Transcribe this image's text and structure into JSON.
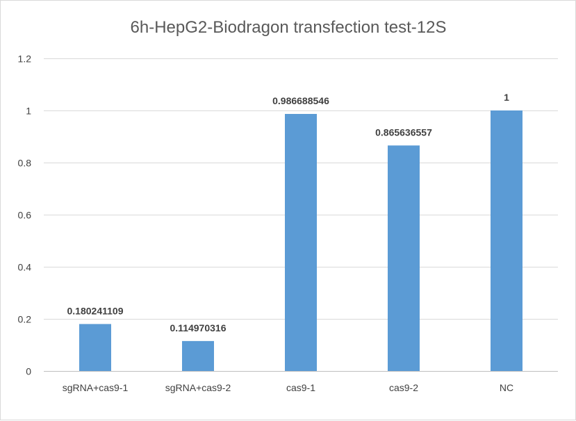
{
  "chart_data": {
    "type": "bar",
    "title": "6h-HepG2-Biodragon transfection test-12S",
    "categories": [
      "sgRNA+cas9-1",
      "sgRNA+cas9-2",
      "cas9-1",
      "cas9-2",
      "NC"
    ],
    "values": [
      0.180241109,
      0.114970316,
      0.986688546,
      0.865636557,
      1
    ],
    "data_labels": [
      "0.180241109",
      "0.114970316",
      "0.986688546",
      "0.865636557",
      "1"
    ],
    "y_ticks": [
      "0",
      "0.2",
      "0.4",
      "0.6",
      "0.8",
      "1",
      "1.2"
    ],
    "ylim": [
      0,
      1.2
    ],
    "xlabel": "",
    "ylabel": "",
    "grid": true,
    "legend": false,
    "bar_color": "#5b9bd5"
  }
}
